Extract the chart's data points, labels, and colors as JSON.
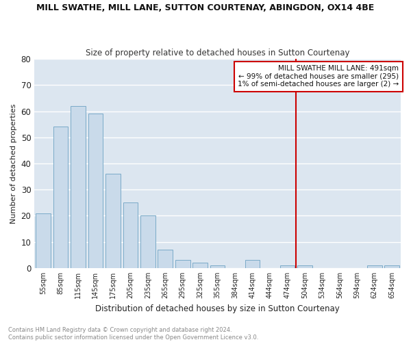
{
  "title": "MILL SWATHE, MILL LANE, SUTTON COURTENAY, ABINGDON, OX14 4BE",
  "subtitle": "Size of property relative to detached houses in Sutton Courtenay",
  "xlabel": "Distribution of detached houses by size in Sutton Courtenay",
  "ylabel": "Number of detached properties",
  "footer_line1": "Contains HM Land Registry data © Crown copyright and database right 2024.",
  "footer_line2": "Contains public sector information licensed under the Open Government Licence v3.0.",
  "categories": [
    "55sqm",
    "85sqm",
    "115sqm",
    "145sqm",
    "175sqm",
    "205sqm",
    "235sqm",
    "265sqm",
    "295sqm",
    "325sqm",
    "355sqm",
    "384sqm",
    "414sqm",
    "444sqm",
    "474sqm",
    "504sqm",
    "534sqm",
    "564sqm",
    "594sqm",
    "624sqm",
    "654sqm"
  ],
  "values": [
    21,
    54,
    62,
    59,
    36,
    25,
    20,
    7,
    3,
    2,
    1,
    0,
    3,
    0,
    1,
    1,
    0,
    0,
    0,
    1,
    1
  ],
  "bar_color": "#c9daea",
  "bar_edge_color": "#7aaac8",
  "background_color": "#dce6f0",
  "grid_color": "#ffffff",
  "fig_background": "#ffffff",
  "marker_line_color": "#cc0000",
  "annotation_line1": "MILL SWATHE MILL LANE: 491sqm",
  "annotation_line2": "← 99% of detached houses are smaller (295)",
  "annotation_line3": "1% of semi-detached houses are larger (2) →",
  "annotation_box_color": "#cc0000",
  "ylim": [
    0,
    80
  ],
  "yticks": [
    0,
    10,
    20,
    30,
    40,
    50,
    60,
    70,
    80
  ]
}
